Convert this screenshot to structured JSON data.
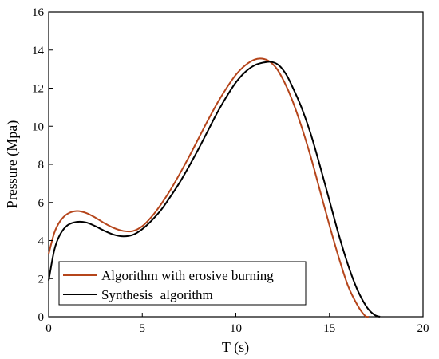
{
  "chart_data": {
    "type": "line",
    "title": "",
    "xlabel": "T (s)",
    "ylabel": "Pressure (Mpa)",
    "xlim": [
      0,
      20
    ],
    "ylim": [
      0,
      16
    ],
    "xticks": [
      0,
      5,
      10,
      15,
      20
    ],
    "yticks": [
      0,
      2,
      4,
      6,
      8,
      10,
      12,
      14,
      16
    ],
    "grid": false,
    "legend_position": "bottom-left",
    "series": [
      {
        "name": "Algorithm with erosive burning",
        "color": "#b5451b",
        "x": [
          0,
          0.3,
          0.6,
          1.0,
          1.5,
          2.0,
          2.5,
          3.0,
          3.5,
          4.0,
          4.5,
          5.0,
          5.5,
          6.0,
          6.5,
          7.0,
          7.5,
          8.0,
          8.5,
          9.0,
          9.5,
          10.0,
          10.5,
          11.0,
          11.4,
          11.8,
          12.2,
          12.6,
          13.0,
          13.5,
          14.0,
          14.5,
          15.0,
          15.5,
          16.0,
          16.5,
          16.9,
          17.1
        ],
        "y": [
          3.3,
          4.4,
          5.0,
          5.4,
          5.55,
          5.45,
          5.2,
          4.9,
          4.65,
          4.5,
          4.5,
          4.75,
          5.25,
          5.9,
          6.65,
          7.5,
          8.4,
          9.35,
          10.3,
          11.2,
          12.0,
          12.7,
          13.2,
          13.5,
          13.55,
          13.4,
          13.0,
          12.3,
          11.4,
          10.0,
          8.4,
          6.6,
          4.8,
          3.1,
          1.6,
          0.6,
          0.05,
          0.0
        ]
      },
      {
        "name": "Synthesis  algorithm",
        "color": "#000000",
        "x": [
          0,
          0.3,
          0.6,
          1.0,
          1.5,
          2.0,
          2.5,
          3.0,
          3.5,
          4.0,
          4.5,
          5.0,
          5.5,
          6.0,
          6.5,
          7.0,
          7.5,
          8.0,
          8.5,
          9.0,
          9.5,
          10.0,
          10.5,
          11.0,
          11.5,
          11.9,
          12.3,
          12.7,
          13.1,
          13.5,
          14.0,
          14.5,
          15.0,
          15.5,
          16.0,
          16.5,
          17.0,
          17.4,
          17.7
        ],
        "y": [
          1.9,
          3.5,
          4.3,
          4.8,
          4.98,
          4.95,
          4.75,
          4.5,
          4.3,
          4.22,
          4.3,
          4.6,
          5.05,
          5.6,
          6.3,
          7.05,
          7.9,
          8.8,
          9.75,
          10.7,
          11.55,
          12.3,
          12.85,
          13.2,
          13.35,
          13.38,
          13.2,
          12.7,
          11.9,
          11.0,
          9.6,
          7.9,
          6.1,
          4.3,
          2.7,
          1.4,
          0.5,
          0.1,
          0.0
        ]
      }
    ]
  }
}
